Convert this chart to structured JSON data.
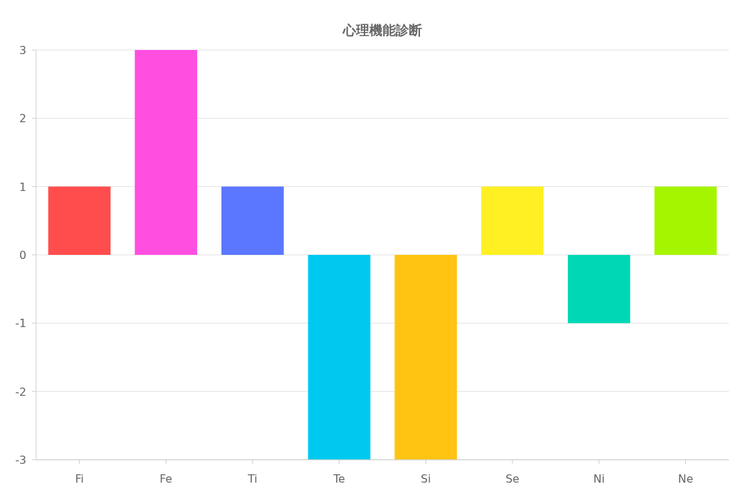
{
  "chart_data": {
    "type": "bar",
    "title": "心理機能診断",
    "categories": [
      "Fi",
      "Fe",
      "Ti",
      "Te",
      "Si",
      "Se",
      "Ni",
      "Ne"
    ],
    "values": [
      1,
      3,
      1,
      -3,
      -3,
      1,
      -1,
      1
    ],
    "colors": [
      "#ff4d4d",
      "#ff4fe1",
      "#5b77ff",
      "#00c9f0",
      "#ffc312",
      "#fff023",
      "#00d8b5",
      "#a5f500"
    ],
    "ylim": [
      -3,
      3
    ],
    "yticks": [
      -3,
      -2,
      -1,
      0,
      1,
      2,
      3
    ],
    "grid": "y"
  }
}
